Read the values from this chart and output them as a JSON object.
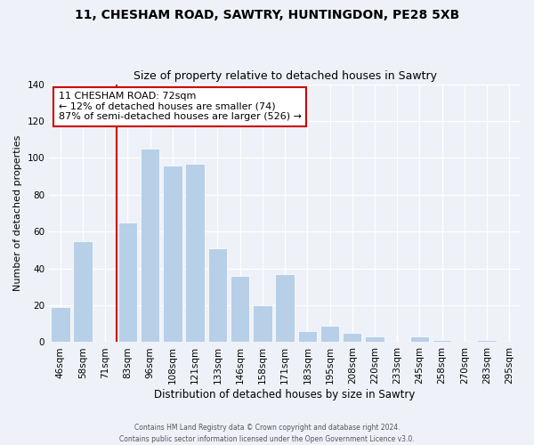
{
  "title1": "11, CHESHAM ROAD, SAWTRY, HUNTINGDON, PE28 5XB",
  "title2": "Size of property relative to detached houses in Sawtry",
  "xlabel": "Distribution of detached houses by size in Sawtry",
  "ylabel": "Number of detached properties",
  "bar_labels": [
    "46sqm",
    "58sqm",
    "71sqm",
    "83sqm",
    "96sqm",
    "108sqm",
    "121sqm",
    "133sqm",
    "146sqm",
    "158sqm",
    "171sqm",
    "183sqm",
    "195sqm",
    "208sqm",
    "220sqm",
    "233sqm",
    "245sqm",
    "258sqm",
    "270sqm",
    "283sqm",
    "295sqm"
  ],
  "bar_values": [
    19,
    55,
    0,
    65,
    105,
    96,
    97,
    51,
    36,
    20,
    37,
    6,
    9,
    5,
    3,
    0,
    3,
    1,
    0,
    1,
    0
  ],
  "bar_color": "#b8cfe8",
  "vline_color": "#cc0000",
  "vline_x_index": 2,
  "annotation_title": "11 CHESHAM ROAD: 72sqm",
  "annotation_line1": "← 12% of detached houses are smaller (74)",
  "annotation_line2": "87% of semi-detached houses are larger (526) →",
  "annotation_box_color": "#ffffff",
  "annotation_box_edge_color": "#cc0000",
  "ylim": [
    0,
    140
  ],
  "bg_color": "#eef2f8",
  "footer1": "Contains HM Land Registry data © Crown copyright and database right 2024.",
  "footer2": "Contains public sector information licensed under the Open Government Licence v3.0."
}
